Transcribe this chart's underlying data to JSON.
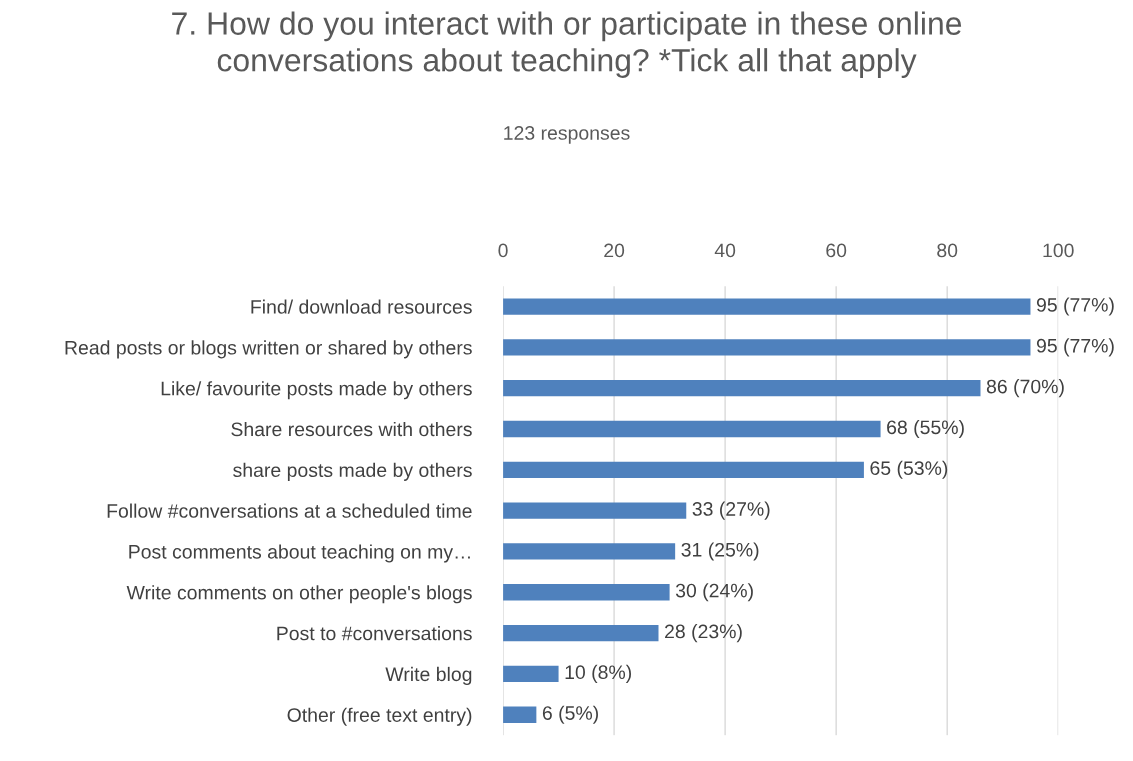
{
  "chart_data": {
    "type": "bar",
    "orientation": "horizontal",
    "title": "7. How do you interact with or participate in these online\nconversations about teaching? *Tick all that apply",
    "subtitle": "123 responses",
    "categories": [
      "Find/ download resources",
      "Read posts or blogs written or shared by others",
      "Like/ favourite posts made by others",
      "Share resources with others",
      "share posts made by others",
      "Follow #conversations at a scheduled time",
      "Post comments about teaching on my…",
      "Write comments on other people's blogs",
      "Post to #conversations",
      "Write blog",
      "Other (free text entry)"
    ],
    "values": [
      95,
      95,
      86,
      68,
      65,
      33,
      31,
      30,
      28,
      10,
      6
    ],
    "value_labels": [
      "95 (77%)",
      "95 (77%)",
      "86 (70%)",
      "68 (55%)",
      "65 (53%)",
      "33 (27%)",
      "31 (25%)",
      "30 (24%)",
      "28 (23%)",
      "10 (8%)",
      "6 (5%)"
    ],
    "color": "#4f81bd",
    "xlim": [
      0,
      100
    ],
    "xticks": [
      0,
      20,
      40,
      60,
      80,
      100
    ],
    "grid": "x",
    "legend": false
  }
}
